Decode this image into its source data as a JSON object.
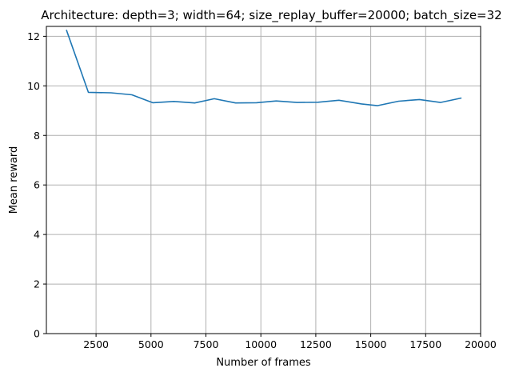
{
  "chart_data": {
    "type": "line",
    "title": "Architecture: depth=3; width=64; size_replay_buffer=20000; batch_size=32",
    "xlabel": "Number of frames",
    "ylabel": "Mean reward",
    "xlim": [
      240,
      20000
    ],
    "ylim": [
      0,
      12.4
    ],
    "xticks": [
      2500,
      5000,
      7500,
      10000,
      12500,
      15000,
      17500,
      20000
    ],
    "xtick_labels": [
      "2500",
      "5000",
      "7500",
      "10000",
      "12500",
      "15000",
      "17500",
      "20000"
    ],
    "yticks": [
      0,
      2,
      4,
      6,
      8,
      10,
      12
    ],
    "ytick_labels": [
      "0",
      "2",
      "4",
      "6",
      "8",
      "10",
      "12"
    ],
    "grid": true,
    "series": [
      {
        "color": "#1f77b4",
        "x": [
          1150,
          2150,
          3180,
          4130,
          5080,
          6040,
          6990,
          7880,
          8850,
          9800,
          10700,
          11650,
          12600,
          13550,
          14580,
          15300,
          16270,
          17220,
          18170,
          19130
        ],
        "y": [
          12.26,
          9.74,
          9.72,
          9.64,
          9.32,
          9.37,
          9.31,
          9.48,
          9.31,
          9.32,
          9.39,
          9.33,
          9.34,
          9.42,
          9.27,
          9.2,
          9.38,
          9.45,
          9.33,
          9.51
        ]
      }
    ]
  }
}
